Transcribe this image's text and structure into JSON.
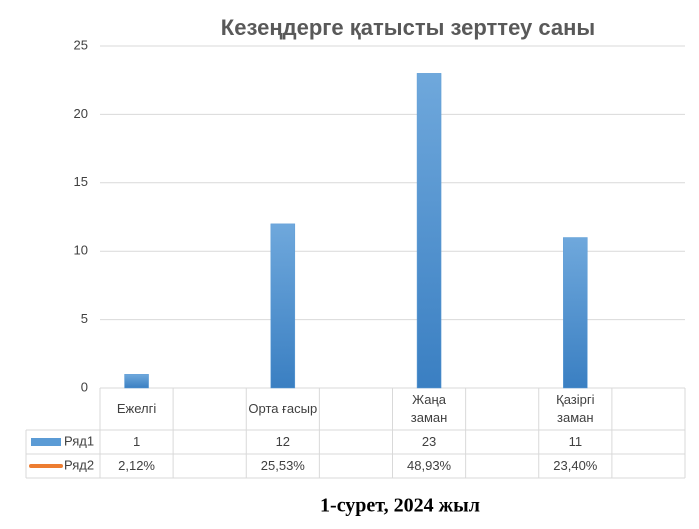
{
  "chart_data": {
    "type": "bar",
    "title": "Кезеңдерге қатысты зерттеу саны",
    "caption": "1-сурет, 2024 жыл",
    "categories": [
      "Ежелгі",
      null,
      "Орта ғасыр",
      null,
      "Жаңа заман",
      null,
      "Қазіргі заман",
      null
    ],
    "series": [
      {
        "name": "Ряд1",
        "color": "#5b9bd5",
        "values": [
          1,
          null,
          12,
          null,
          23,
          null,
          11,
          null
        ]
      },
      {
        "name": "Ряд2",
        "color": "#ed7d31",
        "values": [
          2.12,
          null,
          25.53,
          null,
          48.93,
          null,
          23.4,
          null
        ],
        "value_labels": [
          "2,12%",
          null,
          "25,53%",
          null,
          "48,93%",
          null,
          "23,40%",
          null
        ]
      }
    ],
    "ylim": [
      0,
      25
    ],
    "yticks": [
      0,
      5,
      10,
      15,
      20,
      25
    ],
    "grid": true,
    "data_table": true
  }
}
